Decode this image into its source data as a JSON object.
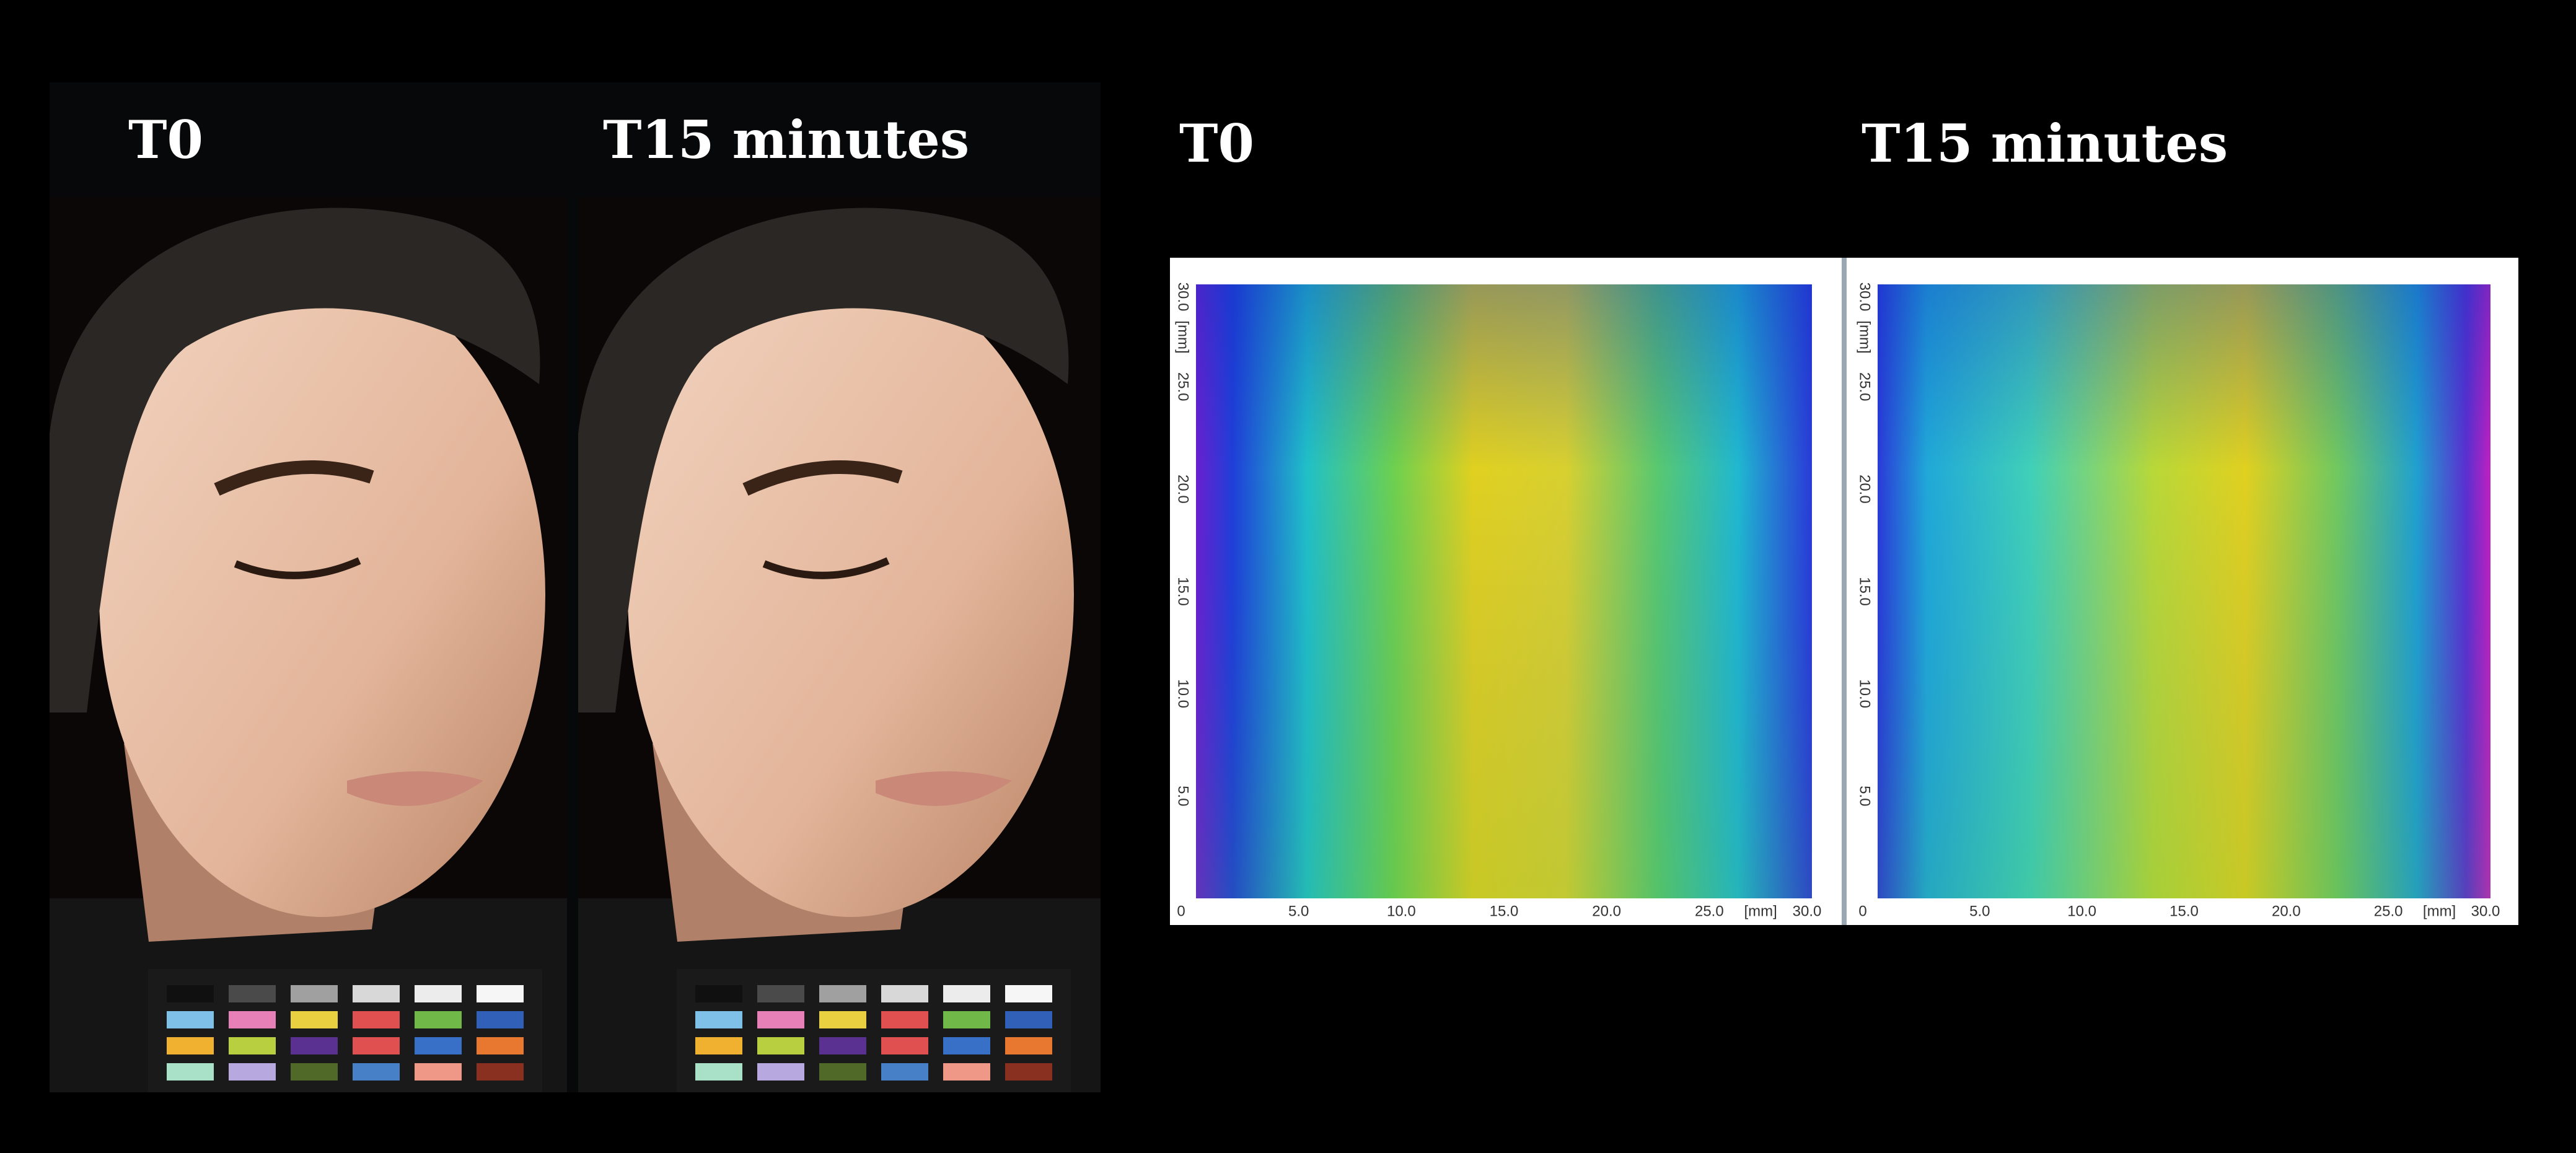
{
  "photos": {
    "labels": [
      "T0",
      "T15 minutes"
    ]
  },
  "maps": {
    "labels": [
      "T0",
      "T15 minutes"
    ],
    "x_axis": [
      "0",
      "5.0",
      "10.0",
      "15.0",
      "20.0",
      "25.0",
      "[mm]",
      "30.0"
    ],
    "y_axis": [
      "30.0",
      "[mm]",
      "25.0",
      "20.0",
      "15.0",
      "10.0",
      "5.0"
    ]
  }
}
